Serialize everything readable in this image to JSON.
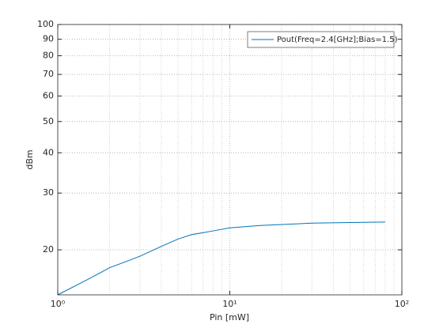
{
  "chart_data": {
    "type": "line",
    "xlabel": "Pin [mW]",
    "ylabel": "dBm",
    "x": [
      1,
      1.5,
      2,
      2.5,
      3,
      4,
      5,
      6,
      7,
      8,
      10,
      15,
      30,
      50,
      80
    ],
    "series": [
      {
        "name": "Pout(Freq=2.4[GHz];Bias=1.5)",
        "color": "#0072bd",
        "values": [
          14.5,
          16.2,
          17.6,
          18.4,
          19.1,
          20.5,
          21.6,
          22.3,
          22.6,
          22.9,
          23.4,
          23.8,
          24.2,
          24.3,
          24.4
        ]
      }
    ],
    "xlim": [
      1,
      100
    ],
    "ylim": [
      14.5,
      100
    ],
    "xticks": [
      {
        "value": 1,
        "label": "10⁰"
      },
      {
        "value": 10,
        "label": "10¹"
      },
      {
        "value": 100,
        "label": "10²"
      }
    ],
    "yticks": [
      20,
      30,
      40,
      50,
      60,
      70,
      80,
      90,
      100
    ],
    "xscale": "log",
    "yscale": "log",
    "grid": true,
    "minor_grid": true,
    "legend": "northeast"
  }
}
